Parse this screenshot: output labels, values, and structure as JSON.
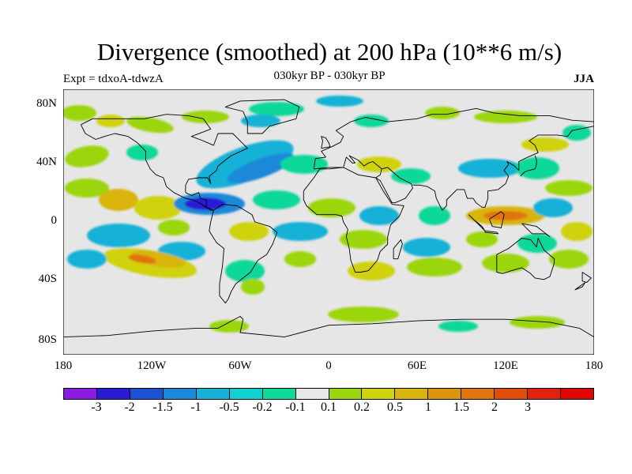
{
  "header": {
    "title": "Divergence (smoothed) at 200 hPa (10**6 m/s)",
    "left_label": "Expt = tdxoA-tdwzA",
    "center_label": "030kyr BP - 030kyr BP",
    "right_label": "JJA"
  },
  "axes": {
    "lat_labels": [
      "80N",
      "40N",
      "0",
      "40S",
      "80S"
    ],
    "lon_labels": [
      "180",
      "120W",
      "60W",
      "0",
      "60E",
      "120E",
      "180"
    ]
  },
  "colorbar": {
    "colors": [
      "#8a1be0",
      "#2a1bd6",
      "#1d52d4",
      "#1b88d8",
      "#16b1d6",
      "#12cfd0",
      "#0fd89a",
      "#e8e8e8",
      "#9bd60f",
      "#cfd20f",
      "#d8b40f",
      "#dc960e",
      "#e0740e",
      "#e04e0e",
      "#e0220e",
      "#e00606"
    ],
    "labels": [
      "-3",
      "-2",
      "-1.5",
      "-1",
      "-0.5",
      "-0.2",
      "-0.1",
      "0.1",
      "0.2",
      "0.5",
      "1",
      "1.5",
      "2",
      "3"
    ]
  },
  "map_colors": {
    "background": "#e6e6e6",
    "neg_weak": "#0fd89a",
    "neg_mid": "#16b1d6",
    "neg_strong": "#1b88d8",
    "neg_core": "#2a1bd6",
    "pos_weak": "#9bd60f",
    "pos_mid": "#cfd20f",
    "pos_strong": "#d8b40f",
    "pos_core": "#e0740e",
    "coast": "#000000"
  }
}
